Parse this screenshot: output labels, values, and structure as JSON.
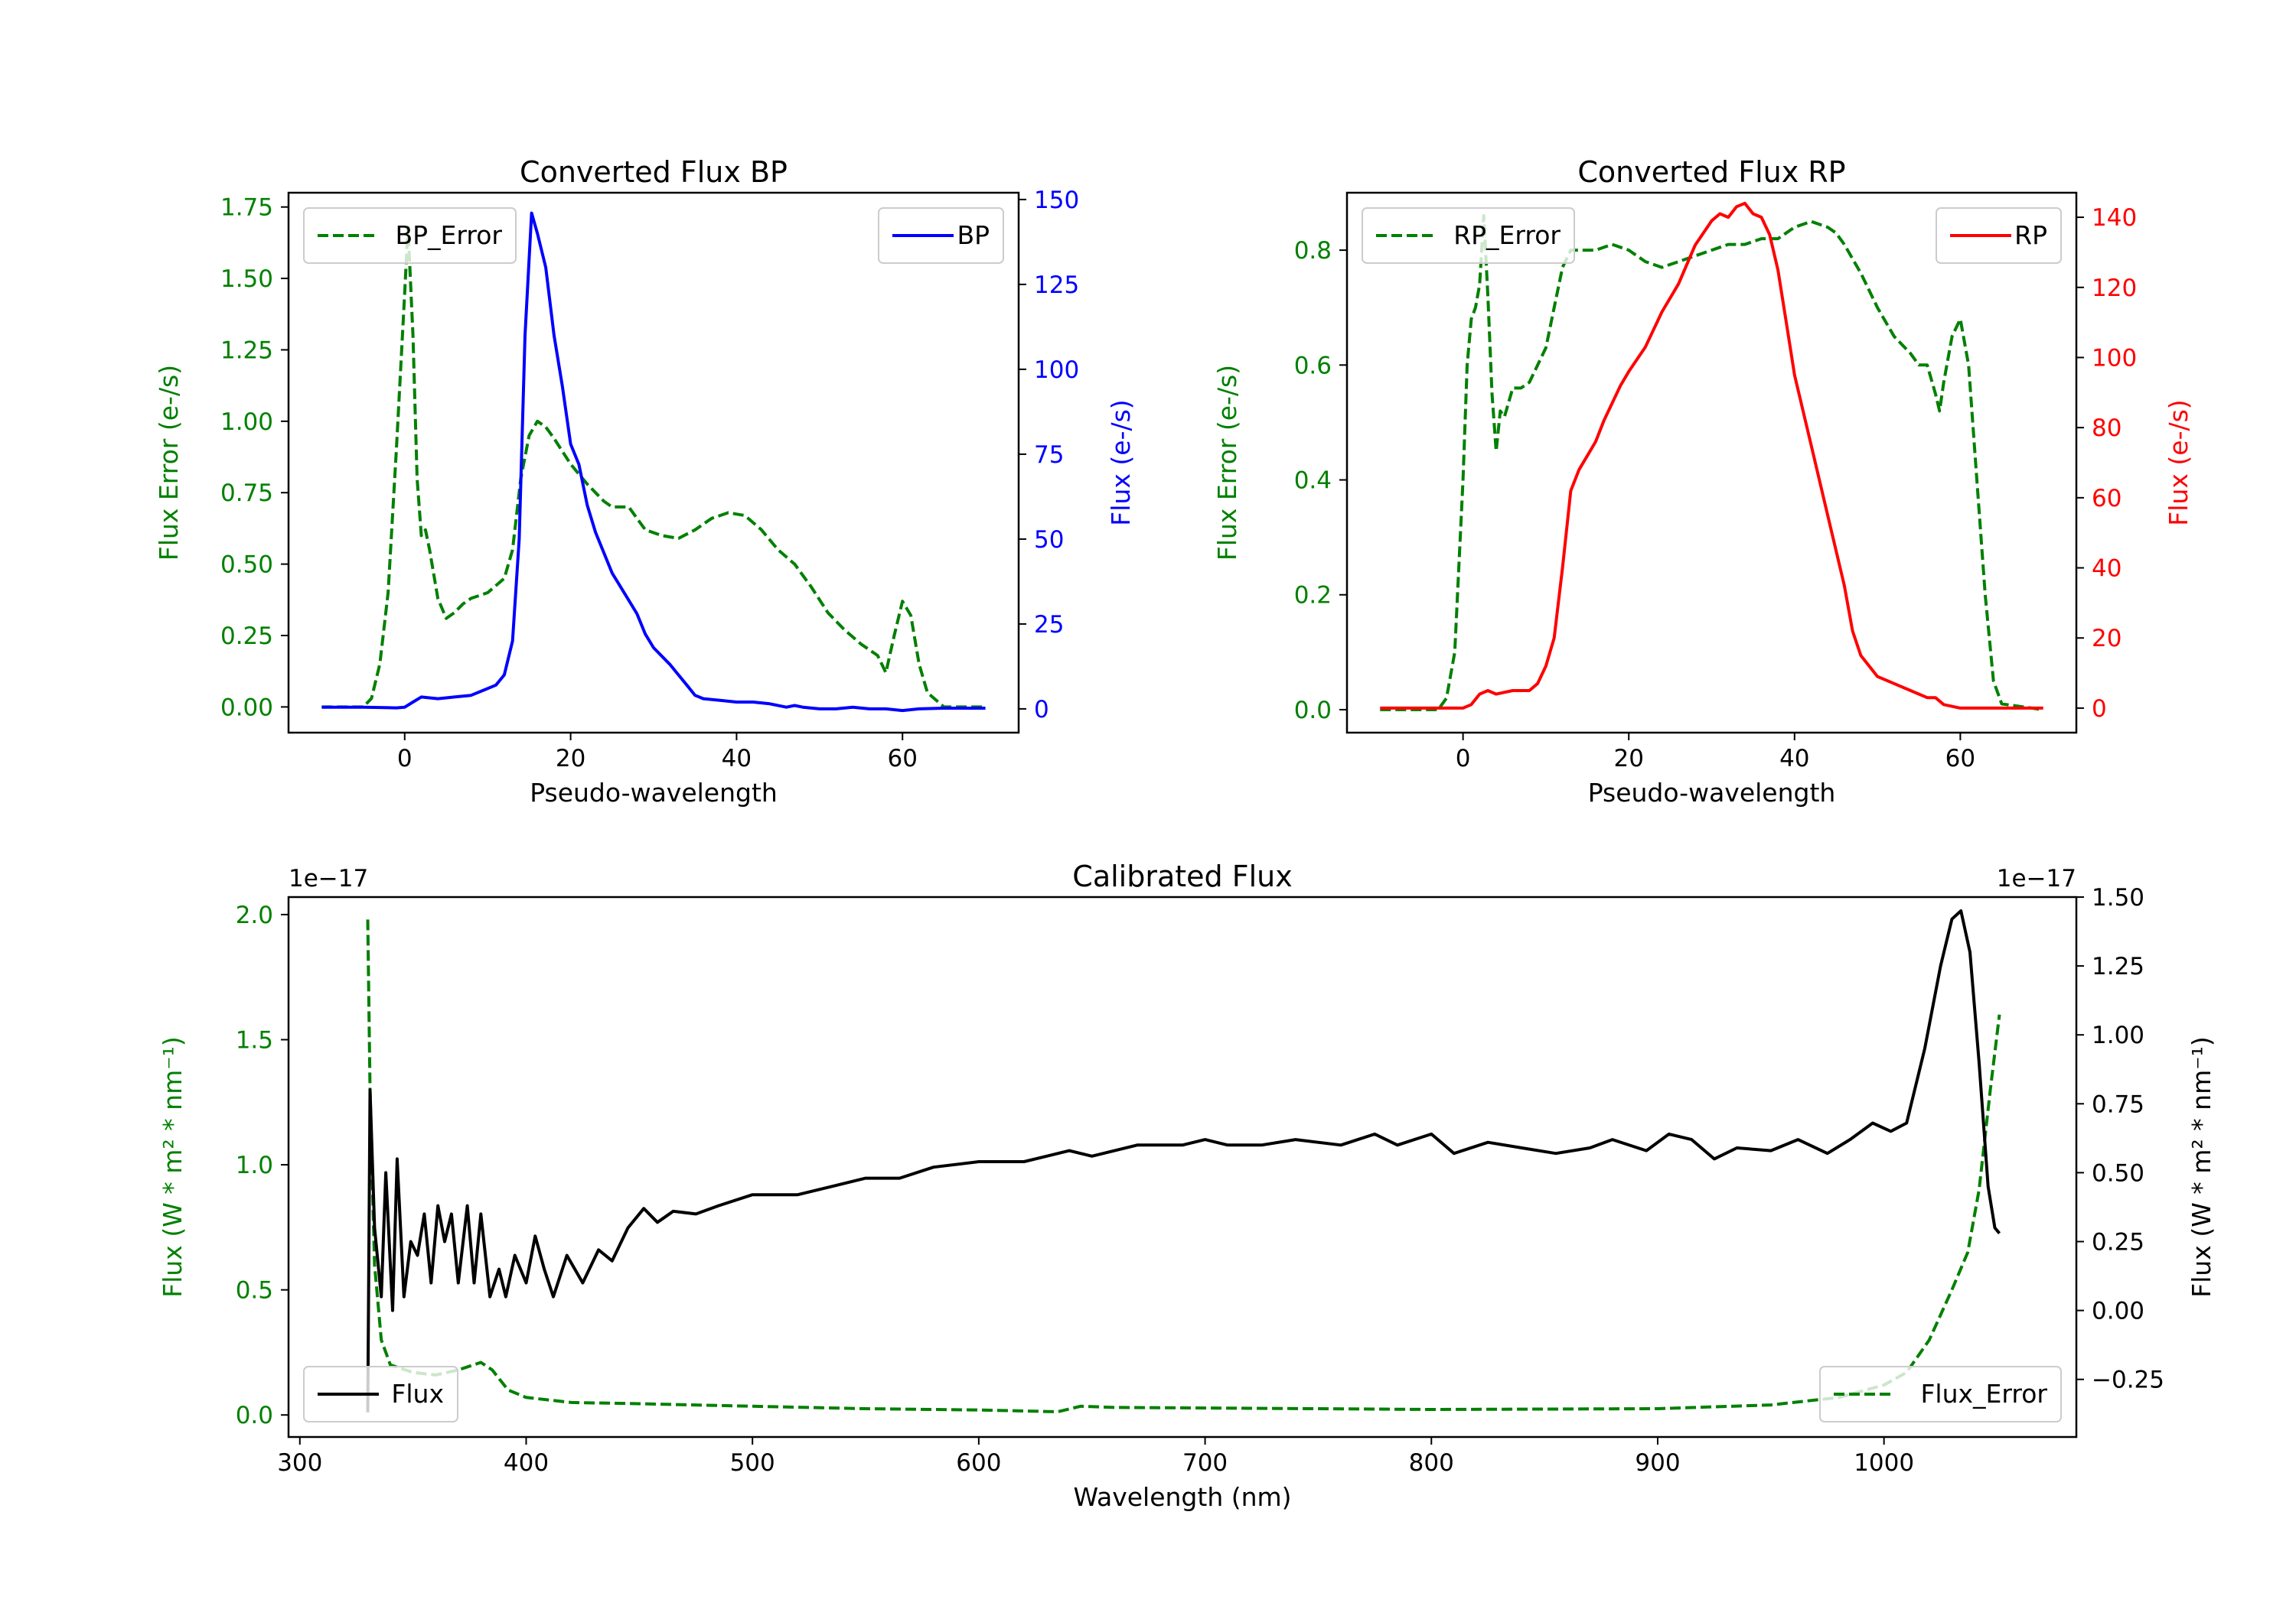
{
  "chart_data": [
    {
      "type": "line",
      "title": "Converted Flux BP",
      "xlabel": "Pseudo-wavelength",
      "ylabel_left": "Flux Error (e-/s)",
      "ylabel_right": "Flux (e-/s)",
      "xlim": [
        -14,
        74
      ],
      "ylim_left": [
        -0.09,
        1.8
      ],
      "ylim_right": [
        -7,
        152
      ],
      "xticks": [
        0,
        20,
        40,
        60
      ],
      "yticks_left": [
        "0.00",
        "0.25",
        "0.50",
        "0.75",
        "1.00",
        "1.25",
        "1.50",
        "1.75"
      ],
      "yticks_right": [
        "0",
        "25",
        "50",
        "75",
        "100",
        "125",
        "150"
      ],
      "left_color": "#008000",
      "right_color": "#0000ff",
      "series": [
        {
          "name": "BP_Error",
          "axis": "left",
          "style": "dashed",
          "color": "#008000",
          "legend": "top-left",
          "x": [
            -10,
            -5,
            -4,
            -3,
            -2,
            -1,
            0,
            0.4,
            1,
            1.5,
            2,
            2.5,
            3,
            4,
            5,
            6,
            7,
            8,
            10,
            12,
            13,
            14,
            15,
            16,
            17,
            18,
            20,
            22,
            24,
            25,
            27,
            28,
            29,
            31,
            33,
            35,
            37,
            39,
            41,
            43,
            45,
            47,
            49,
            51,
            53,
            55,
            57,
            58,
            59,
            60,
            61,
            62,
            63,
            65,
            70
          ],
          "y": [
            0,
            0,
            0.03,
            0.15,
            0.4,
            0.9,
            1.45,
            1.68,
            1.3,
            0.8,
            0.6,
            0.62,
            0.55,
            0.38,
            0.31,
            0.33,
            0.36,
            0.38,
            0.4,
            0.45,
            0.55,
            0.8,
            0.95,
            1.0,
            0.98,
            0.94,
            0.85,
            0.78,
            0.72,
            0.7,
            0.7,
            0.66,
            0.62,
            0.6,
            0.59,
            0.62,
            0.66,
            0.68,
            0.67,
            0.62,
            0.55,
            0.5,
            0.42,
            0.33,
            0.27,
            0.22,
            0.18,
            0.12,
            0.25,
            0.37,
            0.32,
            0.15,
            0.05,
            0,
            0
          ]
        },
        {
          "name": "BP",
          "axis": "right",
          "style": "solid",
          "color": "#0000ff",
          "legend": "top-right",
          "x": [
            -10,
            -5,
            -1,
            0,
            1,
            2,
            4,
            6,
            8,
            10,
            11,
            12,
            13,
            13.8,
            14.5,
            15.3,
            16,
            17,
            18,
            19,
            20,
            21,
            22,
            23,
            25,
            27,
            28,
            29,
            30,
            32,
            33,
            34,
            35,
            36,
            38,
            40,
            42,
            44,
            46,
            47,
            48,
            50,
            52,
            54,
            56,
            58,
            60,
            62,
            65,
            70
          ],
          "y": [
            0.5,
            0.5,
            0.3,
            0.5,
            2,
            3.5,
            3,
            3.5,
            4,
            6,
            7,
            10,
            20,
            50,
            110,
            146,
            140,
            130,
            110,
            95,
            78,
            72,
            60,
            52,
            40,
            32,
            28,
            22,
            18,
            13,
            10,
            7,
            4,
            3,
            2.5,
            2,
            2,
            1.5,
            0.5,
            1,
            0.5,
            0,
            0,
            0.5,
            0,
            0,
            -0.5,
            0,
            0.2,
            0.2
          ]
        }
      ]
    },
    {
      "type": "line",
      "title": "Converted Flux RP",
      "xlabel": "Pseudo-wavelength",
      "ylabel_left": "Flux Error (e-/s)",
      "ylabel_right": "Flux (e-/s)",
      "xlim": [
        -14,
        74
      ],
      "ylim_left": [
        -0.04,
        0.9
      ],
      "ylim_right": [
        -7,
        147
      ],
      "xticks": [
        0,
        20,
        40,
        60
      ],
      "yticks_left": [
        "0.0",
        "0.2",
        "0.4",
        "0.6",
        "0.8"
      ],
      "yticks_right": [
        "0",
        "20",
        "40",
        "60",
        "80",
        "100",
        "120",
        "140"
      ],
      "left_color": "#008000",
      "right_color": "#ff0000",
      "series": [
        {
          "name": "RP_Error",
          "axis": "left",
          "style": "dashed",
          "color": "#008000",
          "legend": "top-left",
          "x": [
            -10,
            -3,
            -2,
            -1,
            0,
            0.5,
            1,
            1.5,
            2,
            2.5,
            3,
            3.5,
            4,
            4.5,
            5,
            6,
            7,
            8,
            10,
            11,
            12,
            13,
            14,
            16,
            18,
            20,
            22,
            24,
            26,
            28,
            30,
            32,
            34,
            36,
            38,
            40,
            42,
            44,
            45,
            46,
            48,
            50,
            52,
            54,
            55,
            56,
            57,
            57.5,
            58,
            59,
            60,
            61,
            62,
            63,
            64,
            65,
            70
          ],
          "y": [
            0,
            0,
            0.02,
            0.1,
            0.4,
            0.6,
            0.68,
            0.7,
            0.74,
            0.86,
            0.72,
            0.55,
            0.45,
            0.52,
            0.51,
            0.56,
            0.56,
            0.57,
            0.63,
            0.7,
            0.77,
            0.8,
            0.8,
            0.8,
            0.81,
            0.8,
            0.78,
            0.77,
            0.78,
            0.79,
            0.8,
            0.81,
            0.81,
            0.82,
            0.82,
            0.84,
            0.85,
            0.84,
            0.83,
            0.81,
            0.76,
            0.7,
            0.65,
            0.62,
            0.6,
            0.6,
            0.55,
            0.52,
            0.57,
            0.65,
            0.68,
            0.6,
            0.4,
            0.2,
            0.05,
            0.01,
            0
          ]
        },
        {
          "name": "RP",
          "axis": "right",
          "style": "solid",
          "color": "#ff0000",
          "legend": "top-right",
          "x": [
            -10,
            -2,
            0,
            1,
            2,
            3,
            4,
            6,
            8,
            9,
            10,
            11,
            12,
            13,
            14,
            15,
            16,
            17,
            18,
            19,
            20,
            22,
            24,
            26,
            28,
            30,
            31,
            32,
            33,
            34,
            35,
            36,
            37,
            38,
            39,
            40,
            42,
            44,
            46,
            47,
            48,
            50,
            52,
            54,
            56,
            57,
            58,
            60,
            70
          ],
          "y": [
            0,
            0,
            0,
            1,
            4,
            5,
            4,
            5,
            5,
            7,
            12,
            20,
            40,
            62,
            68,
            72,
            76,
            82,
            87,
            92,
            96,
            103,
            113,
            121,
            132,
            139,
            141,
            140,
            143,
            144,
            141,
            140,
            135,
            125,
            110,
            95,
            75,
            55,
            35,
            22,
            15,
            9,
            7,
            5,
            3,
            3,
            1,
            0,
            0
          ]
        }
      ]
    },
    {
      "type": "line",
      "title": "Calibrated Flux",
      "xlabel": "Wavelength (nm)",
      "ylabel_left": "Flux (W * m² * nm⁻¹)",
      "ylabel_right": "Flux (W * m² * nm⁻¹)",
      "offset_left": "1e−17",
      "offset_right": "1e−17",
      "xlim": [
        295,
        1085
      ],
      "ylim_left": [
        -0.088,
        2.07
      ],
      "ylim_right": [
        -0.459,
        1.5
      ],
      "xticks": [
        300,
        400,
        500,
        600,
        700,
        800,
        900,
        1000
      ],
      "yticks_left": [
        "0.0",
        "0.5",
        "1.0",
        "1.5",
        "2.0"
      ],
      "yticks_right": [
        "−0.25",
        "0.00",
        "0.25",
        "0.50",
        "0.75",
        "1.00",
        "1.25",
        "1.50"
      ],
      "left_color": "#008000",
      "right_color": "#000000",
      "series": [
        {
          "name": "Flux_Error",
          "axis": "left",
          "style": "dashed",
          "color": "#008000",
          "legend": "bottom-right",
          "x": [
            330,
            331,
            333,
            336,
            340,
            350,
            360,
            370,
            380,
            385,
            392,
            400,
            420,
            450,
            500,
            550,
            600,
            635,
            645,
            660,
            700,
            800,
            900,
            950,
            980,
            1000,
            1010,
            1020,
            1030,
            1037,
            1042,
            1047,
            1051
          ],
          "y": [
            1.98,
            1.3,
            0.6,
            0.3,
            0.2,
            0.17,
            0.16,
            0.18,
            0.21,
            0.18,
            0.1,
            0.07,
            0.05,
            0.045,
            0.035,
            0.025,
            0.02,
            0.013,
            0.035,
            0.03,
            0.028,
            0.022,
            0.025,
            0.04,
            0.07,
            0.12,
            0.17,
            0.3,
            0.5,
            0.65,
            0.9,
            1.3,
            1.6
          ]
        },
        {
          "name": "Flux",
          "axis": "right",
          "style": "solid",
          "color": "#000000",
          "legend": "bottom-left",
          "x": [
            330,
            331,
            333,
            336,
            338,
            341,
            343,
            346,
            349,
            352,
            355,
            358,
            361,
            364,
            367,
            370,
            374,
            377,
            380,
            384,
            388,
            391,
            395,
            400,
            404,
            408,
            412,
            418,
            425,
            432,
            438,
            445,
            452,
            458,
            465,
            475,
            485,
            500,
            510,
            520,
            535,
            550,
            565,
            580,
            600,
            620,
            630,
            640,
            650,
            660,
            670,
            690,
            700,
            710,
            725,
            740,
            760,
            775,
            785,
            800,
            810,
            825,
            840,
            855,
            870,
            880,
            895,
            905,
            915,
            925,
            935,
            950,
            962,
            975,
            985,
            995,
            1003,
            1010,
            1018,
            1025,
            1030,
            1034,
            1038,
            1042,
            1046,
            1049,
            1051
          ],
          "y": [
            -0.37,
            0.8,
            0.3,
            0.05,
            0.5,
            0.0,
            0.55,
            0.05,
            0.25,
            0.2,
            0.35,
            0.1,
            0.38,
            0.25,
            0.35,
            0.1,
            0.38,
            0.1,
            0.35,
            0.05,
            0.15,
            0.05,
            0.2,
            0.1,
            0.27,
            0.15,
            0.05,
            0.2,
            0.1,
            0.22,
            0.18,
            0.3,
            0.37,
            0.32,
            0.36,
            0.35,
            0.38,
            0.42,
            0.42,
            0.42,
            0.45,
            0.48,
            0.48,
            0.52,
            0.54,
            0.54,
            0.56,
            0.58,
            0.56,
            0.58,
            0.6,
            0.6,
            0.62,
            0.6,
            0.6,
            0.62,
            0.6,
            0.64,
            0.6,
            0.64,
            0.57,
            0.61,
            0.59,
            0.57,
            0.59,
            0.62,
            0.58,
            0.64,
            0.62,
            0.55,
            0.59,
            0.58,
            0.62,
            0.57,
            0.62,
            0.68,
            0.65,
            0.68,
            0.95,
            1.25,
            1.42,
            1.45,
            1.3,
            0.9,
            0.45,
            0.3,
            0.28
          ]
        }
      ]
    }
  ]
}
